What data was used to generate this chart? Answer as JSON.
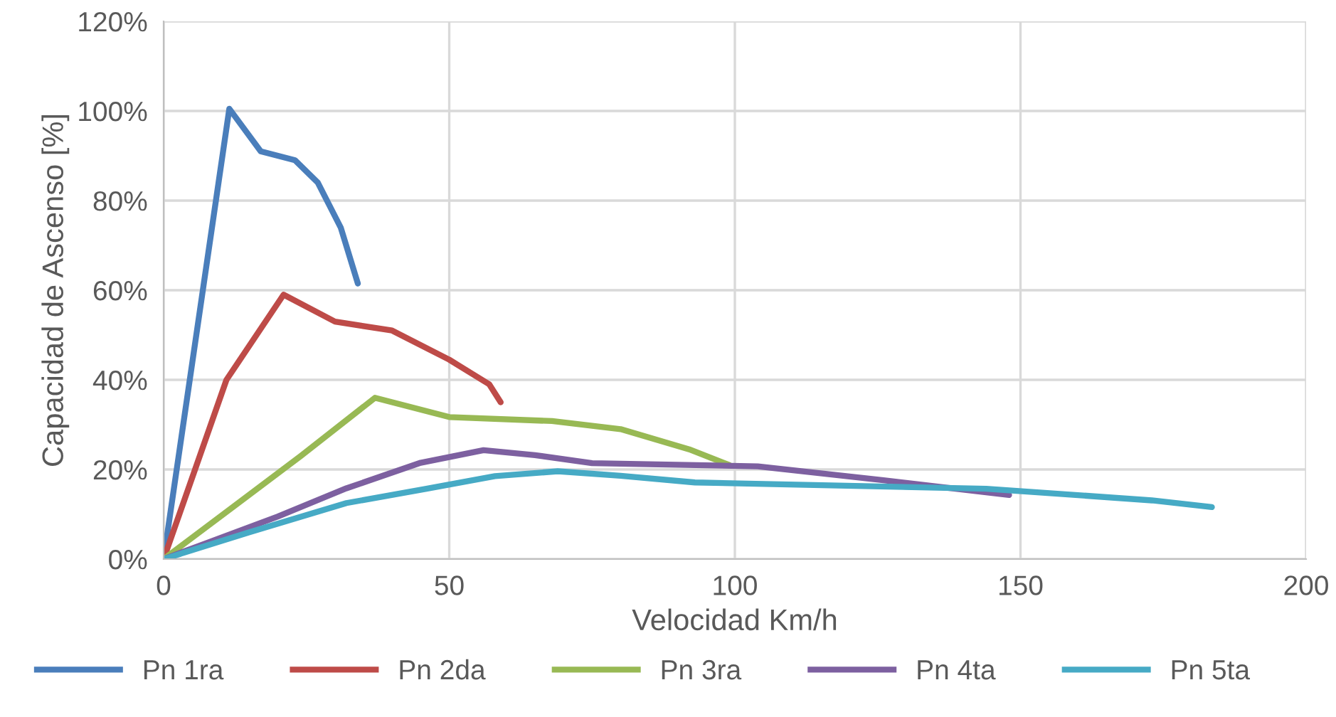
{
  "chart_data": {
    "type": "line",
    "xlabel": "Velocidad Km/h",
    "ylabel": "Capacidad de Ascenso [%]",
    "xlim": [
      0,
      200
    ],
    "xticks": [
      0,
      50,
      100,
      150,
      200
    ],
    "ylim": [
      0,
      120
    ],
    "yticks": [
      {
        "value": 0,
        "label": "0%"
      },
      {
        "value": 20,
        "label": "20%"
      },
      {
        "value": 40,
        "label": "40%"
      },
      {
        "value": 60,
        "label": "60%"
      },
      {
        "value": 80,
        "label": "80%"
      },
      {
        "value": 100,
        "label": "100%"
      },
      {
        "value": 120,
        "label": "120%"
      }
    ],
    "grid": true,
    "legend": "bottom",
    "marker": "none",
    "line_style": "solid",
    "series": [
      {
        "name": "Pn 1ra",
        "color": "#4a7ebb",
        "x": [
          0,
          11.5,
          17,
          23,
          27,
          31,
          34
        ],
        "values": [
          0,
          100.5,
          91,
          89,
          84,
          74,
          61.5
        ]
      },
      {
        "name": "Pn 2da",
        "color": "#be4b48",
        "x": [
          0,
          11,
          21,
          30,
          40,
          50,
          57,
          59
        ],
        "values": [
          0,
          40,
          59,
          53,
          51,
          44.5,
          39,
          35
        ]
      },
      {
        "name": "Pn 3ra",
        "color": "#98b954",
        "x": [
          0,
          12,
          24,
          37,
          50,
          68,
          80,
          92,
          99
        ],
        "values": [
          0,
          11.5,
          23,
          36,
          31.7,
          30.8,
          29,
          24.5,
          21
        ]
      },
      {
        "name": "Pn 4ta",
        "color": "#7d60a0",
        "x": [
          0,
          20,
          32,
          45,
          56,
          65,
          75,
          104,
          126,
          148
        ],
        "values": [
          0,
          9.5,
          15.8,
          21.5,
          24.3,
          23.2,
          21.4,
          20.7,
          17.6,
          14.3
        ]
      },
      {
        "name": "Pn 5ta",
        "color": "#46aac5",
        "x": [
          0,
          15,
          32,
          46,
          58,
          69,
          80,
          93,
          144,
          173,
          183.5
        ],
        "values": [
          0,
          6,
          12.5,
          15.7,
          18.5,
          19.6,
          18.6,
          17.1,
          15.7,
          13.1,
          11.6
        ]
      }
    ]
  }
}
